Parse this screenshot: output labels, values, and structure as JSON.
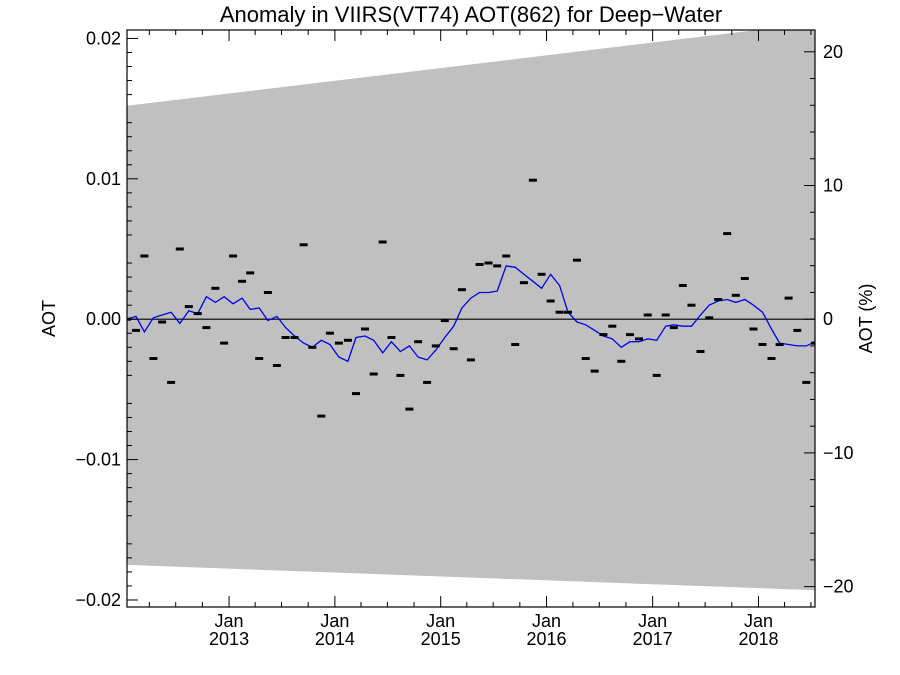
{
  "chart_data": {
    "type": "line",
    "title": "Anomaly in VIIRS(VT74) AOT(862) for Deep−Water",
    "ylabel": "AOT",
    "ylabel_right": "AOT (%)",
    "ylim": [
      -0.0205,
      0.0206
    ],
    "y_ticks": [
      0.02,
      0.01,
      0.0,
      -0.01,
      -0.02
    ],
    "y_tick_labels": [
      "0.02",
      "0.01",
      "0.00",
      "−0.01",
      "−0.02"
    ],
    "y_right_ticks": [
      20,
      10,
      0,
      -10,
      -20
    ],
    "y_right_tick_labels": [
      "20",
      "10",
      "0",
      "−10",
      "−20"
    ],
    "y_right_scale_pct_per_aot": 1050,
    "xlim": [
      "2012-01-15",
      "2018-07-15"
    ],
    "x_ticks": [
      "2013-01-01",
      "2014-01-01",
      "2015-01-01",
      "2016-01-01",
      "2017-01-01",
      "2018-01-01"
    ],
    "x_tick_month_labels": [
      "Jan",
      "Jan",
      "Jan",
      "Jan",
      "Jan",
      "Jan"
    ],
    "x_tick_year_labels": [
      "2013",
      "2014",
      "2015",
      "2016",
      "2017",
      "2018"
    ],
    "uncertainty_band": {
      "color": "#c0c0c0",
      "upper": [
        [
          "2012-01-15",
          0.0152
        ],
        [
          "2018-07-15",
          0.0211
        ]
      ],
      "lower": [
        [
          "2012-01-15",
          -0.0175
        ],
        [
          "2018-07-15",
          -0.0193
        ]
      ]
    },
    "zero_line": 0,
    "series": [
      {
        "style": "markers",
        "marker": "dash",
        "color": "#000000",
        "x": [
          "2012-01",
          "2012-02",
          "2012-03",
          "2012-04",
          "2012-05",
          "2012-06",
          "2012-07",
          "2012-08",
          "2012-09",
          "2012-10",
          "2012-11",
          "2012-12",
          "2013-01",
          "2013-02",
          "2013-03",
          "2013-04",
          "2013-05",
          "2013-06",
          "2013-07",
          "2013-08",
          "2013-09",
          "2013-10",
          "2013-11",
          "2013-12",
          "2014-01",
          "2014-02",
          "2014-03",
          "2014-04",
          "2014-05",
          "2014-06",
          "2014-07",
          "2014-08",
          "2014-09",
          "2014-10",
          "2014-11",
          "2014-12",
          "2015-01",
          "2015-02",
          "2015-03",
          "2015-04",
          "2015-05",
          "2015-06",
          "2015-07",
          "2015-08",
          "2015-09",
          "2015-10",
          "2015-11",
          "2015-12",
          "2016-01",
          "2016-02",
          "2016-03",
          "2016-04",
          "2016-05",
          "2016-06",
          "2016-07",
          "2016-08",
          "2016-09",
          "2016-10",
          "2016-11",
          "2016-12",
          "2017-01",
          "2017-02",
          "2017-03",
          "2017-04",
          "2017-05",
          "2017-06",
          "2017-07",
          "2017-08",
          "2017-09",
          "2017-10",
          "2017-11",
          "2017-12",
          "2018-01",
          "2018-02",
          "2018-03",
          "2018-04",
          "2018-05",
          "2018-06",
          "2018-07"
        ],
        "values": [
          0.0,
          -0.0008,
          0.0045,
          -0.0028,
          -0.0002,
          -0.0045,
          0.005,
          0.0009,
          0.0004,
          -0.0006,
          0.0022,
          -0.0017,
          0.0045,
          0.0027,
          0.0033,
          -0.0028,
          0.0019,
          -0.0033,
          -0.0013,
          -0.0013,
          0.0053,
          -0.002,
          -0.0069,
          -0.001,
          -0.0017,
          -0.0015,
          -0.0053,
          -0.0007,
          -0.0039,
          0.0055,
          -0.0013,
          -0.004,
          -0.0064,
          -0.0016,
          -0.0045,
          -0.0019,
          -0.0001,
          -0.0021,
          0.0021,
          -0.0029,
          0.0039,
          0.004,
          0.0038,
          0.0045,
          -0.0018,
          0.0026,
          0.0099,
          0.0032,
          0.0013,
          0.0005,
          0.0005,
          0.0042,
          -0.0028,
          -0.0037,
          -0.0011,
          -0.0005,
          -0.003,
          -0.0011,
          -0.0014,
          0.0003,
          -0.004,
          0.0003,
          -0.0006,
          0.0024,
          0.001,
          -0.0023,
          0.0001,
          0.0014,
          0.0061,
          0.0017,
          0.0029,
          -0.0007,
          -0.0018,
          -0.0028,
          -0.0018,
          0.0015,
          -0.0008,
          -0.0045,
          -0.0017
        ]
      },
      {
        "style": "line",
        "color": "#0000ee",
        "x": [
          "2012-01",
          "2012-02",
          "2012-03",
          "2012-04",
          "2012-05",
          "2012-06",
          "2012-07",
          "2012-08",
          "2012-09",
          "2012-10",
          "2012-11",
          "2012-12",
          "2013-01",
          "2013-02",
          "2013-03",
          "2013-04",
          "2013-05",
          "2013-06",
          "2013-07",
          "2013-08",
          "2013-09",
          "2013-10",
          "2013-11",
          "2013-12",
          "2014-01",
          "2014-02",
          "2014-03",
          "2014-04",
          "2014-05",
          "2014-06",
          "2014-07",
          "2014-08",
          "2014-09",
          "2014-10",
          "2014-11",
          "2014-12",
          "2015-01",
          "2015-02",
          "2015-03",
          "2015-04",
          "2015-05",
          "2015-06",
          "2015-07",
          "2015-08",
          "2015-09",
          "2015-10",
          "2015-11",
          "2015-12",
          "2016-01",
          "2016-02",
          "2016-03",
          "2016-04",
          "2016-05",
          "2016-06",
          "2016-07",
          "2016-08",
          "2016-09",
          "2016-10",
          "2016-11",
          "2016-12",
          "2017-01",
          "2017-02",
          "2017-03",
          "2017-04",
          "2017-05",
          "2017-06",
          "2017-07",
          "2017-08",
          "2017-09",
          "2017-10",
          "2017-11",
          "2017-12",
          "2018-01",
          "2018-02",
          "2018-03",
          "2018-04",
          "2018-05",
          "2018-06",
          "2018-07"
        ],
        "values": [
          0.0,
          0.0002,
          -0.0009,
          0.0001,
          0.0003,
          0.0005,
          -0.0003,
          0.0006,
          0.0004,
          0.0016,
          0.0012,
          0.0016,
          0.0011,
          0.0015,
          0.0007,
          0.0008,
          -0.0001,
          0.0002,
          -0.0006,
          -0.0012,
          -0.0017,
          -0.002,
          -0.0015,
          -0.0018,
          -0.0027,
          -0.003,
          -0.0013,
          -0.0012,
          -0.0015,
          -0.0024,
          -0.0016,
          -0.0023,
          -0.0019,
          -0.0027,
          -0.0029,
          -0.0022,
          -0.0013,
          -0.0005,
          0.0008,
          0.0015,
          0.0019,
          0.0019,
          0.002,
          0.0038,
          0.0037,
          0.0032,
          0.0027,
          0.0022,
          0.0032,
          0.0024,
          0.0005,
          -0.0002,
          -0.0004,
          -0.0008,
          -0.0012,
          -0.0014,
          -0.002,
          -0.0016,
          -0.0016,
          -0.0014,
          -0.0015,
          -0.0005,
          -0.0004,
          -0.0005,
          -0.0005,
          0.0003,
          0.001,
          0.0013,
          0.0014,
          0.0012,
          0.0014,
          0.001,
          0.0005,
          -0.0007,
          -0.0017,
          -0.0018,
          -0.0019,
          -0.0019,
          -0.0016
        ]
      }
    ]
  }
}
